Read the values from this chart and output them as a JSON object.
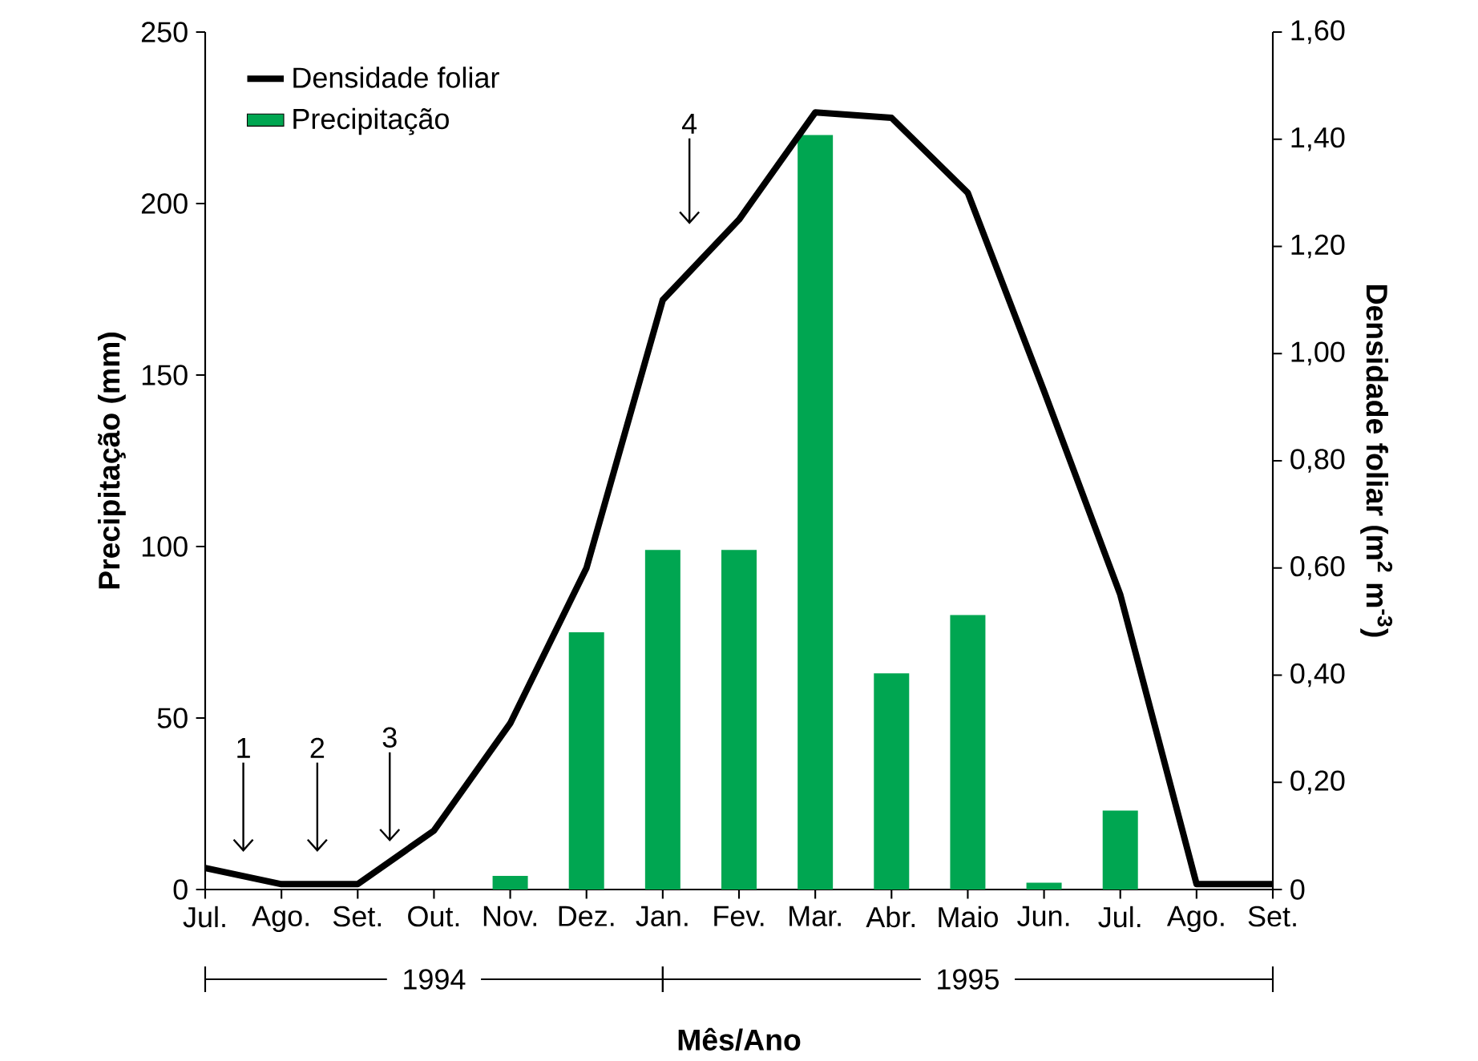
{
  "chart_data": {
    "type": "bar",
    "xlabel": "Mês/Ano",
    "ylabel": "Precipitação (mm)",
    "y2label": "Densidade foliar (m$^{2}$ m$^{-3}$)",
    "categories": [
      "Jul.",
      "Ago.",
      "Set.",
      "Out.",
      "Nov.",
      "Dez.",
      "Jan.",
      "Fev.",
      "Mar.",
      "Abr.",
      "Maio",
      "Jun.",
      "Jul.",
      "Ago.",
      "Set."
    ],
    "series": [
      {
        "name": "Precipitação",
        "color": "#00a651",
        "values": [
          0,
          0,
          0,
          0,
          4,
          75,
          99,
          99,
          220,
          63,
          80,
          2,
          23,
          0,
          0
        ]
      },
      {
        "name": "Densidade foliar",
        "type": "line",
        "axis": "y2",
        "color": "#000000",
        "values": [
          0.04,
          0.01,
          0.01,
          0.11,
          0.31,
          0.6,
          1.1,
          1.25,
          1.45,
          1.44,
          1.3,
          0.93,
          0.55,
          0.01,
          0.01
        ]
      }
    ],
    "ylim": [
      0,
      250
    ],
    "yticks": [
      0,
      50,
      100,
      150,
      200,
      250
    ],
    "y2lim": [
      0,
      1.6
    ],
    "y2ticks": [
      0,
      {
        "value": 0.2,
        "label": "0,20"
      },
      {
        "value": 0.4,
        "label": "0,40"
      },
      {
        "value": 0.6,
        "label": "0,60"
      },
      {
        "value": 0.8,
        "label": "0,80"
      },
      {
        "value": 1.0,
        "label": "1,00"
      },
      {
        "value": 1.2,
        "label": "1,20"
      },
      {
        "value": 1.4,
        "label": "1,40"
      },
      {
        "value": 1.6,
        "label": "1,60"
      }
    ],
    "grid": false,
    "legend": "top left",
    "annotations": [
      "1",
      "2",
      "3",
      "4",
      "1994",
      "1995"
    ]
  }
}
